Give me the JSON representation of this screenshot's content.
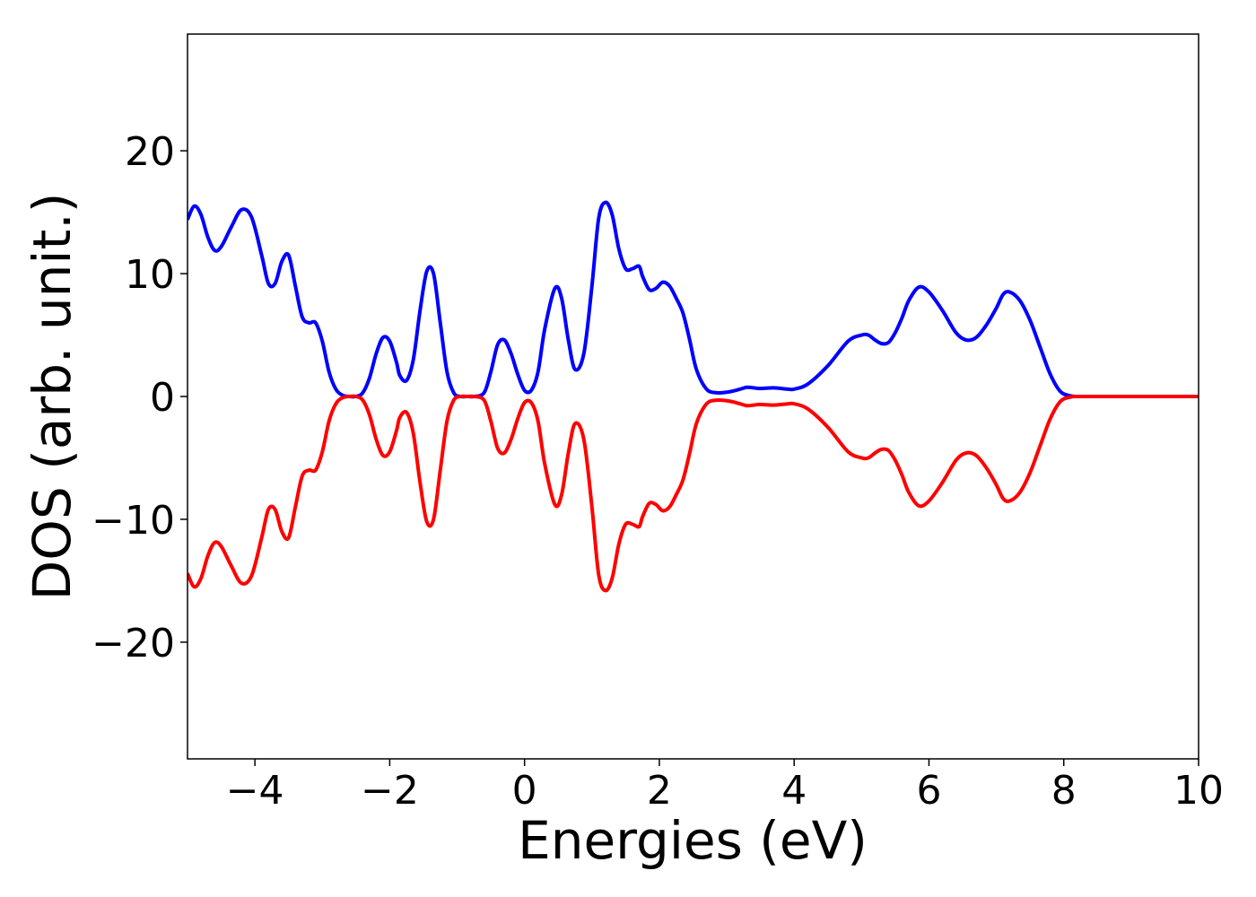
{
  "chart_data": {
    "type": "line",
    "title": "",
    "xlabel": "Energies (eV)",
    "ylabel": "DOS (arb. unit.)",
    "xlim": [
      -5,
      10
    ],
    "ylim": [
      -29.5,
      29.5
    ],
    "grid": false,
    "legend": "none",
    "x_ticks": [
      -4,
      -2,
      0,
      2,
      4,
      6,
      8,
      10
    ],
    "x_tick_labels": [
      "−4",
      "−2",
      "0",
      "2",
      "4",
      "6",
      "8",
      "10"
    ],
    "y_ticks": [
      -20,
      -10,
      0,
      10,
      20
    ],
    "y_tick_labels": [
      "−20",
      "−10",
      "0",
      "10",
      "20"
    ],
    "series": [
      {
        "color": "#0000ff",
        "x": [
          -5.0,
          -4.9,
          -4.8,
          -4.7,
          -4.6,
          -4.5,
          -4.35,
          -4.2,
          -4.05,
          -3.9,
          -3.8,
          -3.7,
          -3.6,
          -3.5,
          -3.4,
          -3.3,
          -3.2,
          -3.1,
          -3.0,
          -2.9,
          -2.8,
          -2.7,
          -2.6,
          -2.5,
          -2.4,
          -2.3,
          -2.2,
          -2.1,
          -2.0,
          -1.9,
          -1.85,
          -1.75,
          -1.65,
          -1.55,
          -1.45,
          -1.35,
          -1.25,
          -1.15,
          -1.05,
          -0.95,
          -0.85,
          -0.75,
          -0.6,
          -0.5,
          -0.4,
          -0.3,
          -0.2,
          -0.1,
          0.0,
          0.1,
          0.2,
          0.3,
          0.45,
          0.55,
          0.65,
          0.75,
          0.88,
          1.0,
          1.1,
          1.2,
          1.3,
          1.4,
          1.5,
          1.6,
          1.7,
          1.75,
          1.85,
          1.95,
          2.05,
          2.15,
          2.25,
          2.35,
          2.45,
          2.55,
          2.7,
          2.85,
          3.0,
          3.1,
          3.2,
          3.3,
          3.4,
          3.5,
          3.7,
          3.9,
          4.0,
          4.2,
          4.5,
          4.8,
          5.0,
          5.1,
          5.2,
          5.3,
          5.4,
          5.5,
          5.6,
          5.7,
          5.85,
          6.0,
          6.2,
          6.4,
          6.55,
          6.7,
          6.85,
          7.0,
          7.1,
          7.2,
          7.35,
          7.5,
          7.65,
          7.8,
          7.95,
          8.1,
          8.2,
          8.3,
          8.4,
          8.5,
          8.6,
          8.8,
          9.0,
          9.5,
          10.0
        ],
        "y": [
          14.4,
          15.5,
          14.8,
          13.0,
          11.9,
          12.2,
          13.8,
          15.2,
          14.6,
          11.5,
          9.2,
          9.2,
          11.0,
          11.5,
          9.0,
          6.5,
          6.0,
          6.0,
          4.5,
          2.0,
          0.6,
          0.1,
          0.0,
          0.0,
          0.3,
          1.5,
          3.5,
          4.8,
          4.5,
          2.8,
          1.7,
          1.3,
          3.0,
          7.0,
          10.2,
          10.0,
          6.0,
          2.0,
          0.3,
          0.0,
          0.0,
          0.0,
          0.3,
          2.0,
          4.2,
          4.6,
          3.5,
          1.8,
          0.5,
          0.5,
          2.0,
          5.5,
          8.8,
          8.0,
          4.6,
          2.2,
          3.5,
          9.0,
          14.5,
          15.8,
          14.8,
          12.0,
          10.4,
          10.4,
          10.6,
          9.8,
          8.7,
          8.8,
          9.3,
          9.0,
          8.0,
          6.8,
          4.6,
          2.2,
          0.6,
          0.3,
          0.35,
          0.45,
          0.6,
          0.75,
          0.7,
          0.65,
          0.7,
          0.6,
          0.6,
          1.0,
          2.5,
          4.5,
          5.0,
          5.0,
          4.6,
          4.3,
          4.4,
          5.2,
          6.4,
          7.8,
          8.9,
          8.5,
          7.0,
          5.2,
          4.6,
          4.8,
          5.8,
          7.2,
          8.3,
          8.5,
          7.8,
          6.2,
          4.0,
          1.8,
          0.4,
          0.05,
          0.0,
          0.0,
          0.0,
          0.0,
          0.0,
          0.0,
          0.0,
          0.0,
          0.0
        ]
      },
      {
        "color": "#ff0000",
        "x": [
          -5.0,
          -4.9,
          -4.8,
          -4.7,
          -4.6,
          -4.5,
          -4.35,
          -4.2,
          -4.05,
          -3.9,
          -3.8,
          -3.7,
          -3.6,
          -3.5,
          -3.4,
          -3.3,
          -3.2,
          -3.1,
          -3.0,
          -2.9,
          -2.8,
          -2.7,
          -2.6,
          -2.5,
          -2.4,
          -2.3,
          -2.2,
          -2.1,
          -2.0,
          -1.9,
          -1.85,
          -1.75,
          -1.65,
          -1.55,
          -1.45,
          -1.35,
          -1.25,
          -1.15,
          -1.05,
          -0.95,
          -0.85,
          -0.75,
          -0.6,
          -0.5,
          -0.4,
          -0.3,
          -0.2,
          -0.1,
          0.0,
          0.1,
          0.2,
          0.3,
          0.45,
          0.55,
          0.65,
          0.75,
          0.88,
          1.0,
          1.1,
          1.2,
          1.3,
          1.4,
          1.5,
          1.6,
          1.7,
          1.75,
          1.85,
          1.95,
          2.05,
          2.15,
          2.25,
          2.35,
          2.45,
          2.55,
          2.7,
          2.85,
          3.0,
          3.1,
          3.2,
          3.3,
          3.4,
          3.5,
          3.7,
          3.9,
          4.0,
          4.2,
          4.5,
          4.8,
          5.0,
          5.1,
          5.2,
          5.3,
          5.4,
          5.5,
          5.6,
          5.7,
          5.85,
          6.0,
          6.2,
          6.4,
          6.55,
          6.7,
          6.85,
          7.0,
          7.1,
          7.2,
          7.35,
          7.5,
          7.65,
          7.8,
          7.95,
          8.1,
          8.2,
          8.3,
          8.4,
          8.5,
          8.6,
          8.8,
          9.0,
          9.5,
          10.0
        ],
        "y": [
          -14.4,
          -15.5,
          -14.8,
          -13.0,
          -11.9,
          -12.2,
          -13.8,
          -15.2,
          -14.6,
          -11.5,
          -9.2,
          -9.2,
          -11.0,
          -11.5,
          -9.0,
          -6.5,
          -6.0,
          -6.0,
          -4.5,
          -2.0,
          -0.6,
          -0.1,
          0.0,
          0.0,
          -0.3,
          -1.5,
          -3.5,
          -4.8,
          -4.5,
          -2.8,
          -1.7,
          -1.3,
          -3.0,
          -7.0,
          -10.2,
          -10.0,
          -6.0,
          -2.0,
          -0.3,
          0.0,
          0.0,
          0.0,
          -0.3,
          -2.0,
          -4.2,
          -4.6,
          -3.5,
          -1.8,
          -0.5,
          -0.5,
          -2.0,
          -5.5,
          -8.8,
          -8.0,
          -4.6,
          -2.2,
          -3.5,
          -9.0,
          -14.5,
          -15.8,
          -14.8,
          -12.0,
          -10.4,
          -10.4,
          -10.6,
          -9.8,
          -8.7,
          -8.8,
          -9.3,
          -9.0,
          -8.0,
          -6.8,
          -4.6,
          -2.2,
          -0.6,
          -0.3,
          -0.35,
          -0.45,
          -0.6,
          -0.75,
          -0.7,
          -0.65,
          -0.7,
          -0.6,
          -0.6,
          -1.0,
          -2.5,
          -4.5,
          -5.0,
          -5.0,
          -4.6,
          -4.3,
          -4.4,
          -5.2,
          -6.4,
          -7.8,
          -8.9,
          -8.5,
          -7.0,
          -5.2,
          -4.6,
          -4.8,
          -5.8,
          -7.2,
          -8.3,
          -8.5,
          -7.8,
          -6.2,
          -4.0,
          -1.8,
          -0.4,
          -0.05,
          0.0,
          0.0,
          0.0,
          0.0,
          0.0,
          0.0,
          0.0,
          0.0,
          0.0
        ]
      }
    ]
  }
}
